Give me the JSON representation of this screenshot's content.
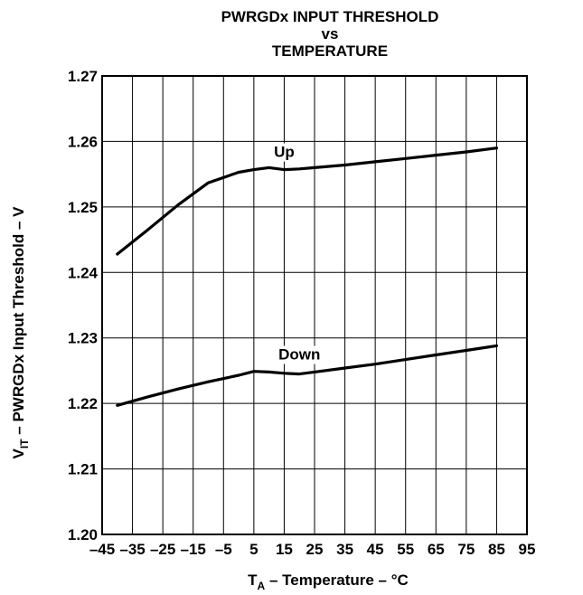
{
  "chart_data": {
    "type": "line",
    "title_lines": [
      "PWRGDx INPUT THRESHOLD",
      "vs",
      "TEMPERATURE"
    ],
    "xlabel": {
      "main": "T",
      "sub": "A",
      "rest": " – Temperature – °C"
    },
    "ylabel": {
      "main": "V",
      "sub": "IT",
      "rest": " – PWRGDx Input Threshold – V"
    },
    "xlim": [
      -45,
      95
    ],
    "ylim": [
      1.2,
      1.27
    ],
    "grid": true,
    "x_ticks": [
      -45,
      -35,
      -25,
      -15,
      -5,
      5,
      15,
      25,
      35,
      45,
      55,
      65,
      75,
      85,
      95
    ],
    "x_tick_labels": [
      "–45",
      "–35",
      "–25",
      "–15",
      "–5",
      "5",
      "15",
      "25",
      "35",
      "45",
      "55",
      "65",
      "75",
      "85",
      "95"
    ],
    "y_ticks": [
      1.2,
      1.21,
      1.22,
      1.23,
      1.24,
      1.25,
      1.26,
      1.27
    ],
    "y_tick_labels": [
      "1.20",
      "1.21",
      "1.22",
      "1.23",
      "1.24",
      "1.25",
      "1.26",
      "1.27"
    ],
    "series": [
      {
        "name": "Up",
        "x": [
          -40,
          -30,
          -20,
          -10,
          0,
          5,
          10,
          15,
          20,
          25,
          35,
          45,
          55,
          65,
          75,
          85
        ],
        "y": [
          1.2428,
          1.2465,
          1.2503,
          1.2537,
          1.2553,
          1.2557,
          1.256,
          1.2557,
          1.2558,
          1.256,
          1.2564,
          1.2569,
          1.2574,
          1.2579,
          1.2584,
          1.259
        ]
      },
      {
        "name": "Down",
        "x": [
          -40,
          -30,
          -20,
          -10,
          0,
          5,
          10,
          15,
          20,
          25,
          35,
          45,
          55,
          65,
          75,
          85
        ],
        "y": [
          1.2197,
          1.221,
          1.2222,
          1.2233,
          1.2243,
          1.2249,
          1.2248,
          1.2246,
          1.2245,
          1.2248,
          1.2254,
          1.226,
          1.2267,
          1.2274,
          1.2281,
          1.2288
        ]
      }
    ]
  }
}
